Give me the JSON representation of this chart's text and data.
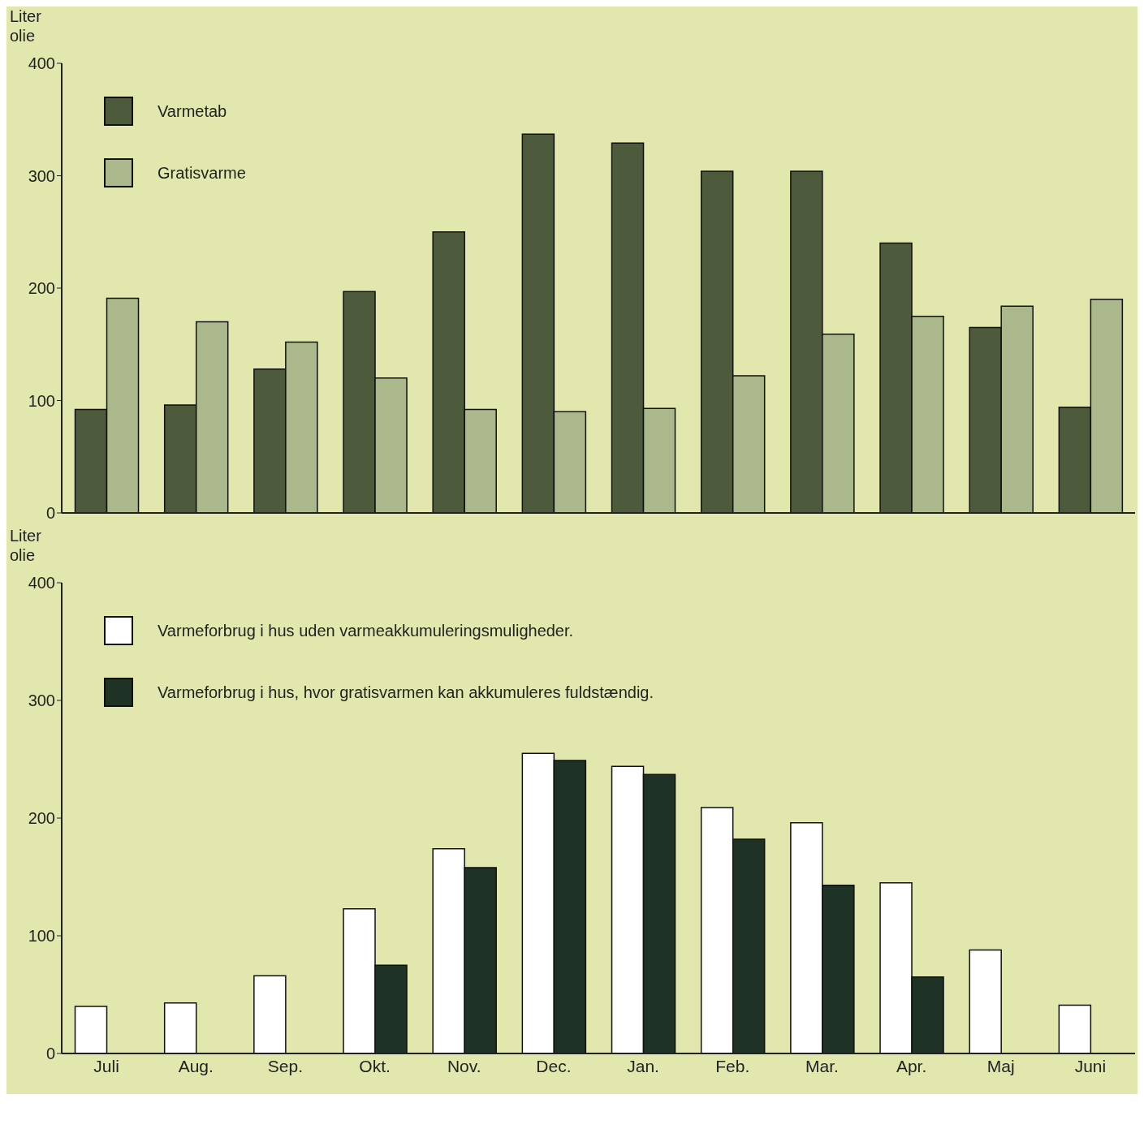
{
  "chart_data": [
    {
      "type": "bar",
      "ylabel": "Liter olie",
      "categories": [
        null,
        null,
        null,
        null,
        null,
        null,
        null,
        null,
        null,
        null,
        null,
        null
      ],
      "ylim": [
        0,
        400
      ],
      "yticks": [
        0,
        100,
        200,
        300,
        400
      ],
      "legend": "top left",
      "tick_labels": "y",
      "series": [
        {
          "name": "Varmetab",
          "color": "#4d5a3c",
          "values": [
            92,
            96,
            128,
            197,
            250,
            337,
            329,
            304,
            304,
            240,
            165,
            94
          ]
        },
        {
          "name": "Gratisvarme",
          "color": "#aab88c",
          "values": [
            191,
            170,
            152,
            120,
            92,
            90,
            93,
            122,
            159,
            175,
            184,
            190
          ]
        }
      ]
    },
    {
      "type": "bar",
      "ylabel": "Liter olie",
      "categories": [
        "Juli",
        "Aug.",
        "Sep.",
        "Okt.",
        "Nov.",
        "Dec.",
        "Jan.",
        "Feb.",
        "Mar.",
        "Apr.",
        "Maj",
        "Juni"
      ],
      "ylim": [
        0,
        400
      ],
      "yticks": [
        0,
        100,
        200,
        300,
        400
      ],
      "legend": "top left",
      "series": [
        {
          "name": "Varmeforbrug i hus uden varmeakkumuleringsmuligheder.",
          "color": "#ffffff",
          "values": [
            40,
            43,
            66,
            123,
            174,
            255,
            244,
            209,
            196,
            145,
            88,
            41
          ]
        },
        {
          "name": "Varmeforbrug i hus, hvor gratisvarmen kan akkumuleres fuldstændig.",
          "color": "#1e3326",
          "values": [
            0,
            0,
            0,
            75,
            158,
            249,
            237,
            182,
            143,
            65,
            0,
            0
          ]
        }
      ]
    }
  ]
}
